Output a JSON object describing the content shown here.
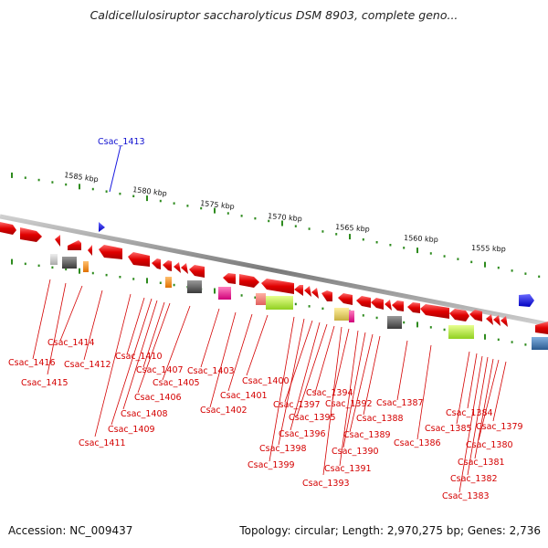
{
  "title": "Caldicellulosiruptor saccharolyticus DSM 8903, complete geno...",
  "footer": {
    "accession": "Accession: NC_009437",
    "topology": "Topology: circular; Length: 2,970,275 bp; Genes: 2,736"
  },
  "scale_labels": [
    "1585 kbp",
    "1580 kbp",
    "1575 kbp",
    "1570 kbp",
    "1565 kbp",
    "1560 kbp",
    "1555 kbp"
  ],
  "highlighted_gene": "Csac_1413",
  "gene_labels": [
    "Csac_1416",
    "Csac_1415",
    "Csac_1414",
    "Csac_1412",
    "Csac_1411",
    "Csac_1410",
    "Csac_1409",
    "Csac_1408",
    "Csac_1407",
    "Csac_1406",
    "Csac_1405",
    "Csac_1403",
    "Csac_1402",
    "Csac_1401",
    "Csac_1400",
    "Csac_1399",
    "Csac_1398",
    "Csac_1397",
    "Csac_1396",
    "Csac_1395",
    "Csac_1394",
    "Csac_1393",
    "Csac_1392",
    "Csac_1391",
    "Csac_1390",
    "Csac_1389",
    "Csac_1388",
    "Csac_1387",
    "Csac_1386",
    "Csac_1385",
    "Csac_1384",
    "Csac_1383",
    "Csac_1382",
    "Csac_1381",
    "Csac_1380",
    "Csac_1379"
  ],
  "colors": {
    "cds": "#e00000",
    "backbone": "#888888",
    "tick": "#2e8b1e",
    "label": "#d40000",
    "highlight": "#1a1ae0"
  }
}
